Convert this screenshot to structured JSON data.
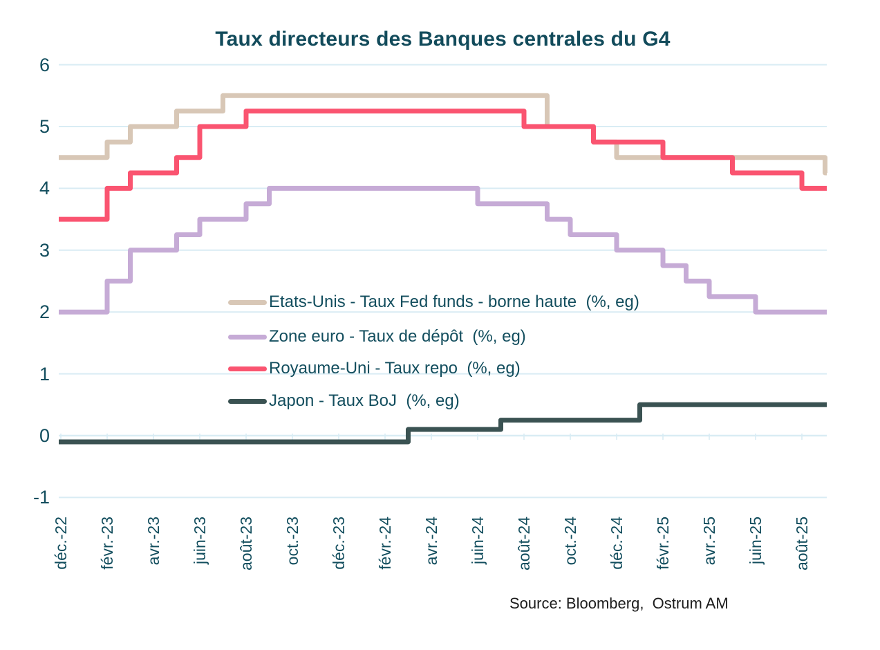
{
  "title": "Taux directeurs des Banques centrales du G4",
  "source": "Source: Bloomberg,  Ostrum AM",
  "colors": {
    "background": "#ffffff",
    "text_teal": "#134e5e",
    "grid": "#d9ecf4",
    "source_text": "#1c1c1c"
  },
  "chart_data": {
    "type": "line",
    "line_style": "step",
    "title": "Taux directeurs des Banques centrales du G4",
    "xlabel": "",
    "ylabel": "",
    "ylim": [
      -1,
      6
    ],
    "grid": true,
    "legend_position": "inside-center-left",
    "x_start_month": "déc.-22",
    "x_end_month": "sept.-25",
    "x_frequency": "monthly",
    "x_tick_labels": [
      "déc.-22",
      "févr.-23",
      "avr.-23",
      "juin-23",
      "août-23",
      "oct.-23",
      "déc.-23",
      "févr.-24",
      "avr.-24",
      "juin-24",
      "août-24",
      "oct.-24",
      "déc.-24",
      "févr.-25",
      "avr.-25",
      "juin-25",
      "août-25"
    ],
    "x_tick_month_indices": [
      0,
      2,
      4,
      6,
      8,
      10,
      12,
      14,
      16,
      18,
      20,
      22,
      24,
      26,
      28,
      30,
      32
    ],
    "y_ticks": [
      6,
      5,
      4,
      3,
      2,
      1,
      0,
      -1
    ],
    "series": [
      {
        "name": "Etats-Unis - Taux Fed funds - borne haute  (%, eg)",
        "color": "#d8c7b6",
        "values": [
          4.5,
          4.5,
          4.75,
          5,
          5,
          5.25,
          5.25,
          5.5,
          5.5,
          5.5,
          5.5,
          5.5,
          5.5,
          5.5,
          5.5,
          5.5,
          5.5,
          5.5,
          5.5,
          5.5,
          5.5,
          5,
          5,
          4.75,
          4.5,
          4.5,
          4.5,
          4.5,
          4.5,
          4.5,
          4.5,
          4.5,
          4.5,
          4.25
        ]
      },
      {
        "name": "Zone euro - Taux de dépôt  (%, eg)",
        "color": "#c6abd6",
        "values": [
          2,
          2,
          2.5,
          3,
          3,
          3.25,
          3.5,
          3.5,
          3.75,
          4,
          4,
          4,
          4,
          4,
          4,
          4,
          4,
          4,
          3.75,
          3.75,
          3.75,
          3.5,
          3.25,
          3.25,
          3,
          3,
          2.75,
          2.5,
          2.25,
          2.25,
          2,
          2,
          2,
          2
        ]
      },
      {
        "name": "Royaume-Uni - Taux repo  (%, eg)",
        "color": "#fa5470",
        "values": [
          3.5,
          3.5,
          4,
          4.25,
          4.25,
          4.5,
          5,
          5,
          5.25,
          5.25,
          5.25,
          5.25,
          5.25,
          5.25,
          5.25,
          5.25,
          5.25,
          5.25,
          5.25,
          5.25,
          5,
          5,
          5,
          4.75,
          4.75,
          4.75,
          4.5,
          4.5,
          4.5,
          4.25,
          4.25,
          4.25,
          4,
          4
        ]
      },
      {
        "name": "Japon - Taux BoJ  (%, eg)",
        "color": "#3a5252",
        "values": [
          -0.1,
          -0.1,
          -0.1,
          -0.1,
          -0.1,
          -0.1,
          -0.1,
          -0.1,
          -0.1,
          -0.1,
          -0.1,
          -0.1,
          -0.1,
          -0.1,
          -0.1,
          0.1,
          0.1,
          0.1,
          0.1,
          0.25,
          0.25,
          0.25,
          0.25,
          0.25,
          0.25,
          0.5,
          0.5,
          0.5,
          0.5,
          0.5,
          0.5,
          0.5,
          0.5,
          0.5
        ]
      }
    ]
  }
}
